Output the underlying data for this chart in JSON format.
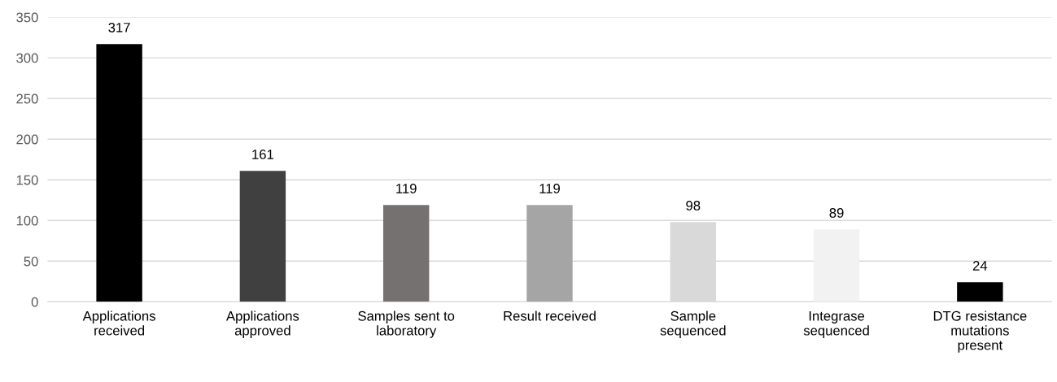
{
  "chart_data": {
    "type": "bar",
    "categories": [
      "Applications\nreceived",
      "Applications\napproved",
      "Samples sent to\nlaboratory",
      "Result received",
      "Sample\nsequenced",
      "Integrase\nsequenced",
      "DTG resistance\nmutations\npresent"
    ],
    "values": [
      317,
      161,
      119,
      119,
      98,
      89,
      24
    ],
    "colors": [
      "#000000",
      "#404040",
      "#767171",
      "#a5a5a5",
      "#d9d9d9",
      "#f2f2f2",
      "#000000"
    ],
    "ylim": [
      0,
      350
    ],
    "yticks": [
      0,
      50,
      100,
      150,
      200,
      250,
      300,
      350
    ],
    "grid": "y",
    "data_labels": true,
    "legend": false
  }
}
